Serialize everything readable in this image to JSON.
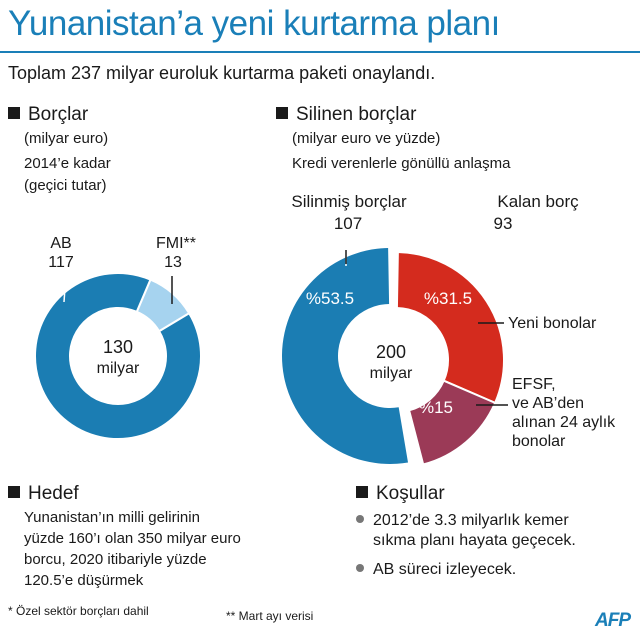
{
  "title": "Yunanistan’a yeni kurtarma planı",
  "subtitle": "Toplam 237 milyar euroluk kurtarma paketi onaylandı.",
  "left_panel": {
    "heading": "Borçlar",
    "unit": "(milyar euro)",
    "note_line1": "2014’e kadar",
    "note_line2": "(geçici tutar)",
    "ab_label": "AB",
    "ab_value": "117",
    "fmi_label": "FMI**",
    "fmi_value": "13",
    "center_value": "130",
    "center_unit": "milyar"
  },
  "right_panel": {
    "heading": "Silinen borçlar",
    "unit": "(milyar euro ve yüzde)",
    "note": "Kredi verenlerle gönüllü anlaşma",
    "silinmis_label": "Silinmiş borçlar",
    "silinmis_value": "107",
    "kalan_label": "Kalan borç",
    "kalan_value": "93",
    "seg_silinmis_pct": "%53.5",
    "seg_yeni_pct": "%31.5",
    "seg_efsf_pct": "%15",
    "yeni_bonolar_label": "Yeni bonolar",
    "efsf_line1": "EFSF,",
    "efsf_line2": "ve AB’den",
    "efsf_line3": "alınan 24 aylık",
    "efsf_line4": "bonolar",
    "center_value": "200",
    "center_unit": "milyar"
  },
  "hedef": {
    "heading": "Hedef",
    "line1": "Yunanistan’ın milli gelirinin",
    "line2": "yüzde 160’ı olan 350 milyar euro",
    "line3": "borcu, 2020 itibariyle yüzde",
    "line4": "120.5’e düşürmek"
  },
  "kosullar": {
    "heading": "Koşullar",
    "b1_line1": "2012’de 3.3 milyarlık kemer",
    "b1_line2": "sıkma planı hayata geçecek.",
    "b2": "AB süreci izleyecek."
  },
  "footnote1": "* Özel sektör borçları dahil",
  "footnote2": "** Mart ayı verisi",
  "logo": "AFP",
  "colors": {
    "title_blue": "#1a7fb8",
    "ab_blue": "#1b7db3",
    "fmi_light_blue": "#a6d3ef",
    "silinmis_blue": "#1b7db3",
    "yeni_red": "#d42b1e",
    "efsf_maroon": "#9b3a57"
  },
  "chart_data": [
    {
      "type": "pie",
      "categories": [
        "AB",
        "FMI**"
      ],
      "values": [
        117,
        13
      ],
      "total": 130
    },
    {
      "type": "pie",
      "categories": [
        "Silinmiş borçlar",
        "Yeni bonolar",
        "EFSF, ve AB’den alınan 24 aylık bonolar"
      ],
      "values": [
        107,
        63,
        30
      ],
      "percent_labels": [
        "%53.5",
        "%31.5",
        "%15"
      ],
      "groups": [
        {
          "name": "Silinmiş borçlar",
          "value": 107
        },
        {
          "name": "Kalan borç",
          "value": 93
        }
      ],
      "total": 200
    }
  ]
}
